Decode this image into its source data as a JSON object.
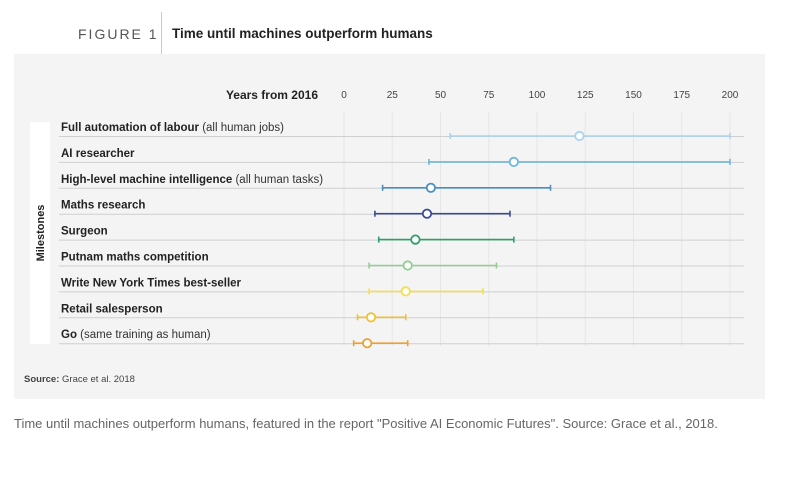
{
  "figure": {
    "label": "FIGURE 1",
    "title": "Time until machines outperform humans"
  },
  "caption": "Time until machines outperform humans, featured in the report \"Positive AI Economic Futures\". Source: Grace et al., 2018.",
  "chart_data": {
    "type": "range",
    "title": "Time until machines outperform humans",
    "xlabel": "Years from 2016",
    "ylabel": "Milestones",
    "xlim": [
      0,
      200
    ],
    "xticks": [
      0,
      25,
      50,
      75,
      100,
      125,
      150,
      175,
      200
    ],
    "source_label": "Source:",
    "source_text": "Grace et al. 2018",
    "milestones": [
      {
        "label": "Full automation of labour",
        "note": "(all human jobs)",
        "low": 55,
        "median": 122,
        "high": 200,
        "color": "#a8d4f0"
      },
      {
        "label": "AI researcher",
        "note": "",
        "low": 44,
        "median": 88,
        "high": 200,
        "color": "#6ab8de"
      },
      {
        "label": "High-level machine intelligence",
        "note": "(all human tasks)",
        "low": 20,
        "median": 45,
        "high": 107,
        "color": "#4a8ec6"
      },
      {
        "label": "Maths research",
        "note": "",
        "low": 16,
        "median": 43,
        "high": 86,
        "color": "#3a4a9a"
      },
      {
        "label": "Surgeon",
        "note": "",
        "low": 18,
        "median": 37,
        "high": 88,
        "color": "#2aa06a"
      },
      {
        "label": "Putnam maths competition",
        "note": "",
        "low": 13,
        "median": 33,
        "high": 79,
        "color": "#8fd08f"
      },
      {
        "label": "Write New York Times best-seller",
        "note": "",
        "low": 13,
        "median": 32,
        "high": 72,
        "color": "#f3e04a"
      },
      {
        "label": "Retail salesperson",
        "note": "",
        "low": 7,
        "median": 14,
        "high": 32,
        "color": "#f0c030"
      },
      {
        "label": "Go",
        "note": "(same training as human)",
        "low": 5,
        "median": 12,
        "high": 33,
        "color": "#f0a030"
      }
    ]
  }
}
